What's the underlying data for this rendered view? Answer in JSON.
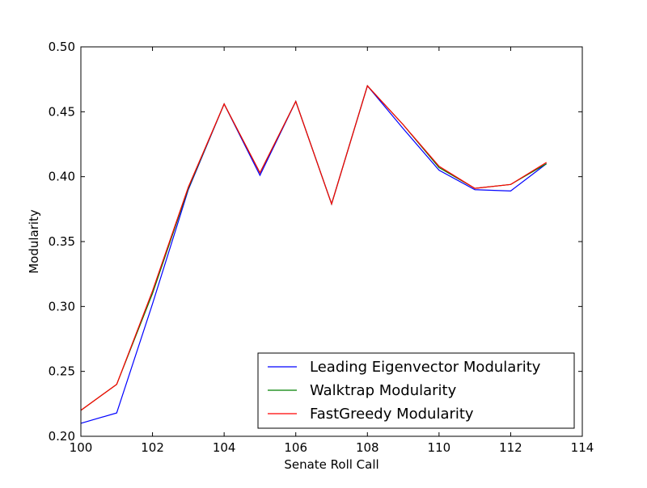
{
  "chart_data": {
    "type": "line",
    "title": "",
    "xlabel": "Senate Roll Call",
    "ylabel": "Modularity",
    "xlim": [
      100,
      114
    ],
    "ylim": [
      0.2,
      0.5
    ],
    "x_ticks": [
      100,
      102,
      104,
      106,
      108,
      110,
      112,
      114
    ],
    "y_ticks": [
      0.2,
      0.25,
      0.3,
      0.35,
      0.4,
      0.45,
      0.5
    ],
    "x_tick_labels": [
      "100",
      "102",
      "104",
      "106",
      "108",
      "110",
      "112",
      "114"
    ],
    "y_tick_labels": [
      "0.20",
      "0.25",
      "0.30",
      "0.35",
      "0.40",
      "0.45",
      "0.50"
    ],
    "grid": false,
    "legend_position": "lower-right",
    "x": [
      100,
      101,
      102,
      103,
      104,
      105,
      106,
      107,
      108,
      109,
      110,
      111,
      112,
      113
    ],
    "series": [
      {
        "name": "Leading Eigenvector Modularity",
        "color": "#0000ff",
        "values": [
          0.21,
          0.218,
          0.302,
          0.39,
          0.456,
          0.401,
          0.458,
          0.379,
          0.47,
          0.437,
          0.405,
          0.39,
          0.389,
          0.41
        ]
      },
      {
        "name": "Walktrap Modularity",
        "color": "#008000",
        "values": [
          0.22,
          0.24,
          0.31,
          0.391,
          0.456,
          0.403,
          0.458,
          0.379,
          0.47,
          0.44,
          0.407,
          0.391,
          0.394,
          0.41
        ]
      },
      {
        "name": "FastGreedy Modularity",
        "color": "#ff0000",
        "values": [
          0.22,
          0.24,
          0.312,
          0.392,
          0.456,
          0.403,
          0.458,
          0.379,
          0.47,
          0.44,
          0.408,
          0.391,
          0.394,
          0.411
        ]
      }
    ]
  }
}
